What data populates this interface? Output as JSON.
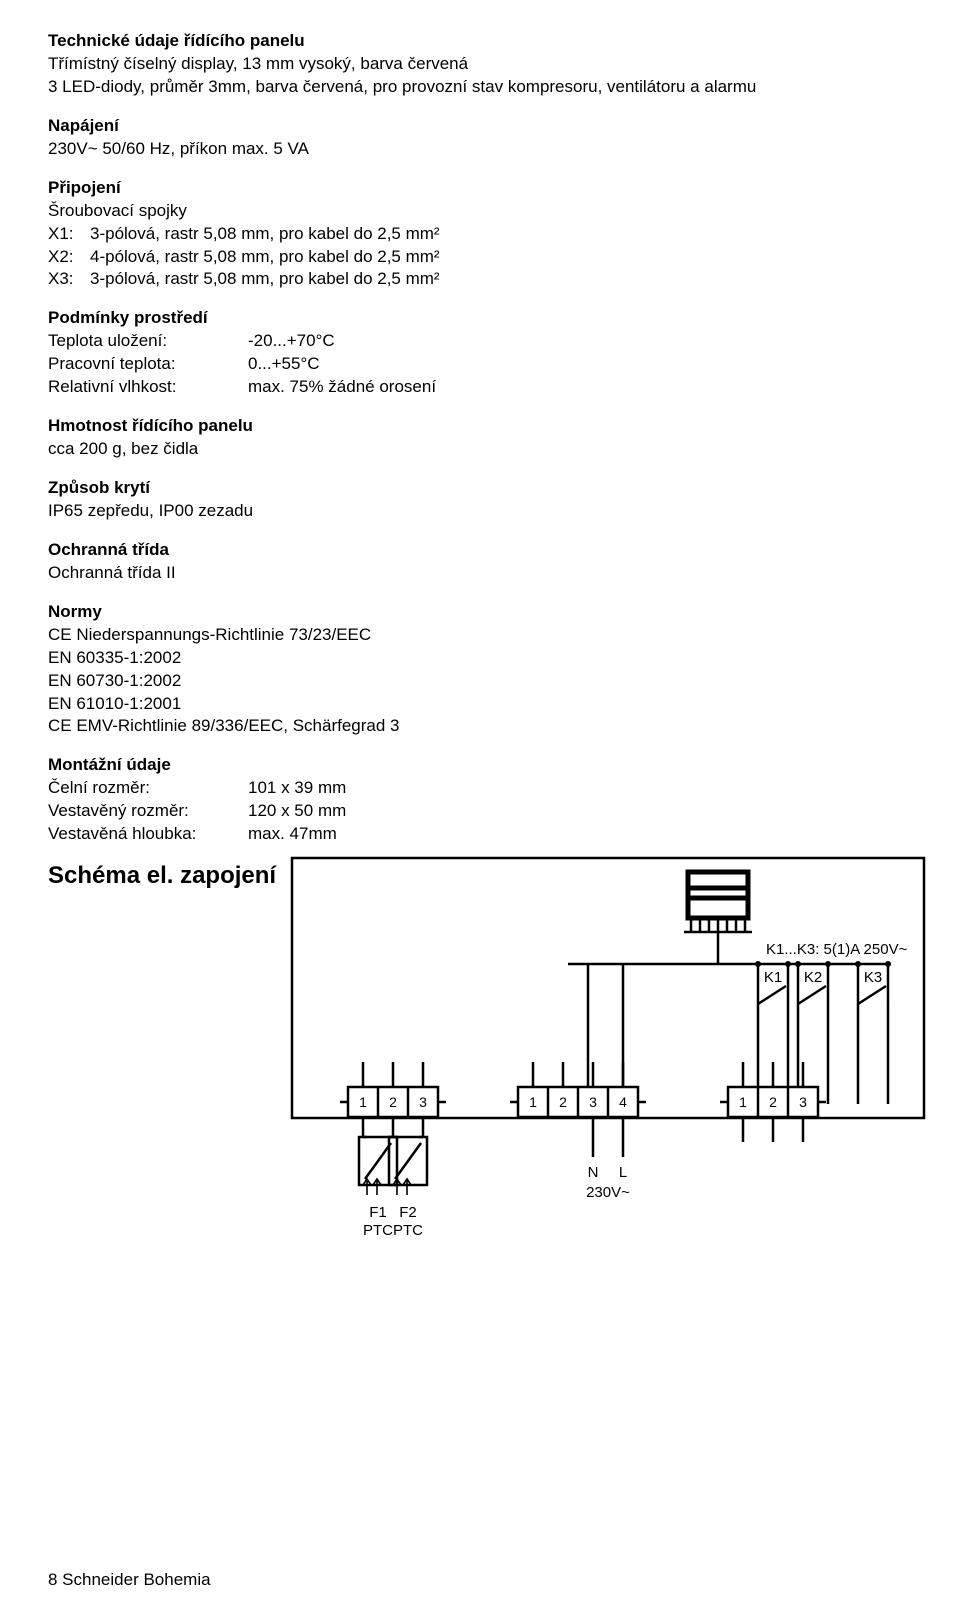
{
  "sec1": {
    "heading": "Technické údaje řídícího panelu",
    "line1": "Třímístný číselný display, 13 mm vysoký, barva červená",
    "line2": "3 LED-diody, průměr 3mm, barva červená, pro provozní stav  kompresoru, ventilátoru a alarmu"
  },
  "power": {
    "heading": "Napájení",
    "line": "230V~  50/60 Hz, příkon max. 5 VA"
  },
  "conn": {
    "heading": "Připojení",
    "sub": "Šroubovací spojky",
    "rows": [
      {
        "k": "X1:",
        "v": "3-pólová, rastr 5,08 mm, pro kabel do 2,5 mm²"
      },
      {
        "k": "X2:",
        "v": "4-pólová, rastr 5,08 mm, pro kabel do 2,5 mm²"
      },
      {
        "k": "X3:",
        "v": "3-pólová, rastr 5,08 mm, pro kabel do 2,5 mm²"
      }
    ]
  },
  "env": {
    "heading": "Podmínky prostředí",
    "rows": [
      {
        "k": "Teplota uložení:",
        "v": "-20...+70°C"
      },
      {
        "k": "Pracovní teplota:",
        "v": "0...+55°C"
      },
      {
        "k": "Relativní vlhkost:",
        "v": "max. 75% žádné orosení"
      }
    ]
  },
  "mass": {
    "heading": "Hmotnost řídícího panelu",
    "line": "cca 200 g, bez čidla"
  },
  "ip": {
    "heading": "Způsob krytí",
    "line": "IP65 zepředu, IP00 zezadu"
  },
  "protclass": {
    "heading": "Ochranná třída",
    "line": "Ochranná třída II"
  },
  "norms": {
    "heading": "Normy",
    "lines": [
      "CE Niederspannungs-Richtlinie 73/23/EEC",
      "EN 60335-1:2002",
      "EN 60730-1:2002",
      "EN 61010-1:2001",
      "CE EMV-Richtlinie 89/336/EEC, Schärfegrad 3"
    ]
  },
  "mount": {
    "heading": "Montážní údaje",
    "rows": [
      {
        "k": "Čelní rozměr:",
        "v": "101 x 39 mm"
      },
      {
        "k": "Vestavěný rozměr:",
        "v": "120 x 50 mm"
      },
      {
        "k": "Vestavěná hloubka:",
        "v": "max. 47mm"
      }
    ]
  },
  "schematic": {
    "title": "Schéma el. zapojení",
    "labels": {
      "relayNote": "K1...K3: 5(1)A  250V~",
      "k1": "K1",
      "k2": "K2",
      "k3": "K3",
      "n": "N",
      "l": "L",
      "v230": "230V~",
      "f1a": "F1",
      "f1b": "PTC",
      "f2a": "F2",
      "f2b": "PTC",
      "t1": "1",
      "t2": "2",
      "t3": "3",
      "t4": "4"
    },
    "style": {
      "stroke": "#000000",
      "strokeWidth": 2.5,
      "strokeBold": 5,
      "bg": "#ffffff",
      "font": "Arial",
      "fontSize": 15,
      "fontSizeSmall": 14
    }
  },
  "footer": "8 Schneider Bohemia"
}
